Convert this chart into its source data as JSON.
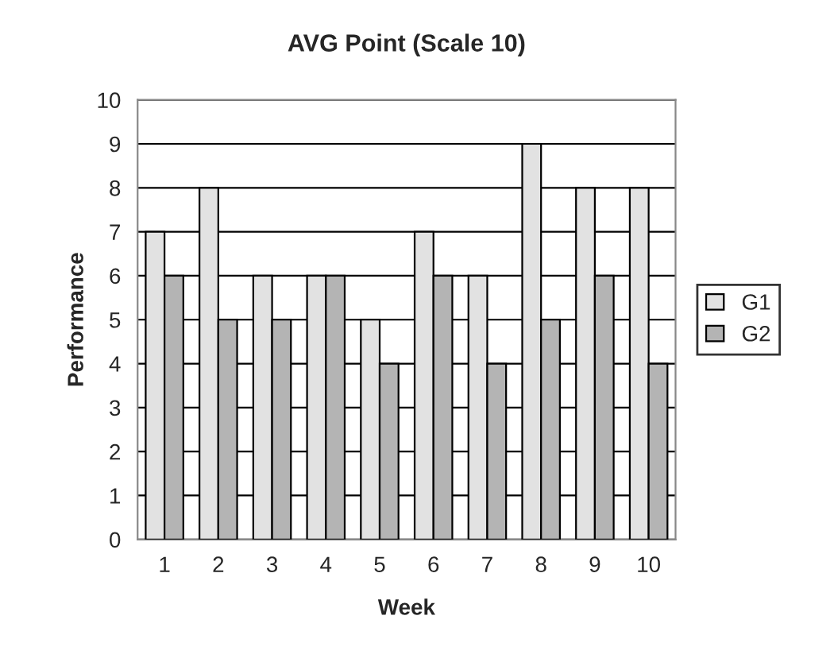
{
  "chart_data": {
    "type": "bar",
    "title": "AVG Point (Scale 10)",
    "xlabel": "Week",
    "ylabel": "Performance",
    "categories": [
      "1",
      "2",
      "3",
      "4",
      "5",
      "6",
      "7",
      "8",
      "9",
      "10"
    ],
    "series": [
      {
        "name": "G1",
        "color": "#e2e2e2",
        "values": [
          7,
          8,
          6,
          6,
          5,
          7,
          6,
          9,
          8,
          8
        ]
      },
      {
        "name": "G2",
        "color": "#b4b4b4",
        "values": [
          6,
          5,
          5,
          6,
          4,
          6,
          4,
          5,
          6,
          4
        ]
      }
    ],
    "ylim": [
      0,
      10
    ],
    "yticks": [
      0,
      1,
      2,
      3,
      4,
      5,
      6,
      7,
      8,
      9,
      10
    ],
    "grid": "y",
    "legend": "right"
  }
}
